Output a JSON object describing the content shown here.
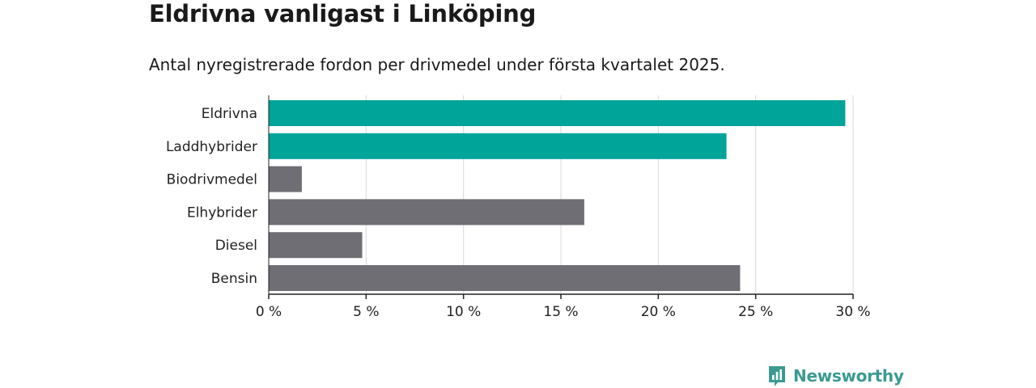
{
  "header": {
    "title": "Eldrivna vanligast i Linköping",
    "subtitle": "Antal nyregistrerade fordon per drivmedel under första kvartalet 2025."
  },
  "brand": {
    "name": "Newsworthy",
    "icon": "bar-chart-logo-icon",
    "color": "#3b9b91"
  },
  "colors": {
    "highlight": "#00a499",
    "other": "#6f6e74",
    "grid": "#d9d9d9",
    "axis": "#222222"
  },
  "chart_data": {
    "type": "bar",
    "orientation": "horizontal",
    "categories": [
      "Eldrivna",
      "Laddhybrider",
      "Biodrivmedel",
      "Elhybrider",
      "Diesel",
      "Bensin"
    ],
    "values": [
      29.6,
      23.5,
      1.7,
      16.2,
      4.8,
      24.2
    ],
    "highlighted": [
      true,
      true,
      false,
      false,
      false,
      false
    ],
    "xlim": [
      0,
      30
    ],
    "xticks": [
      0,
      5,
      10,
      15,
      20,
      25,
      30
    ],
    "tick_labels": [
      "0 %",
      "5 %",
      "10 %",
      "15 %",
      "20 %",
      "25 %",
      "30 %"
    ],
    "grid": true,
    "legend": "none"
  }
}
